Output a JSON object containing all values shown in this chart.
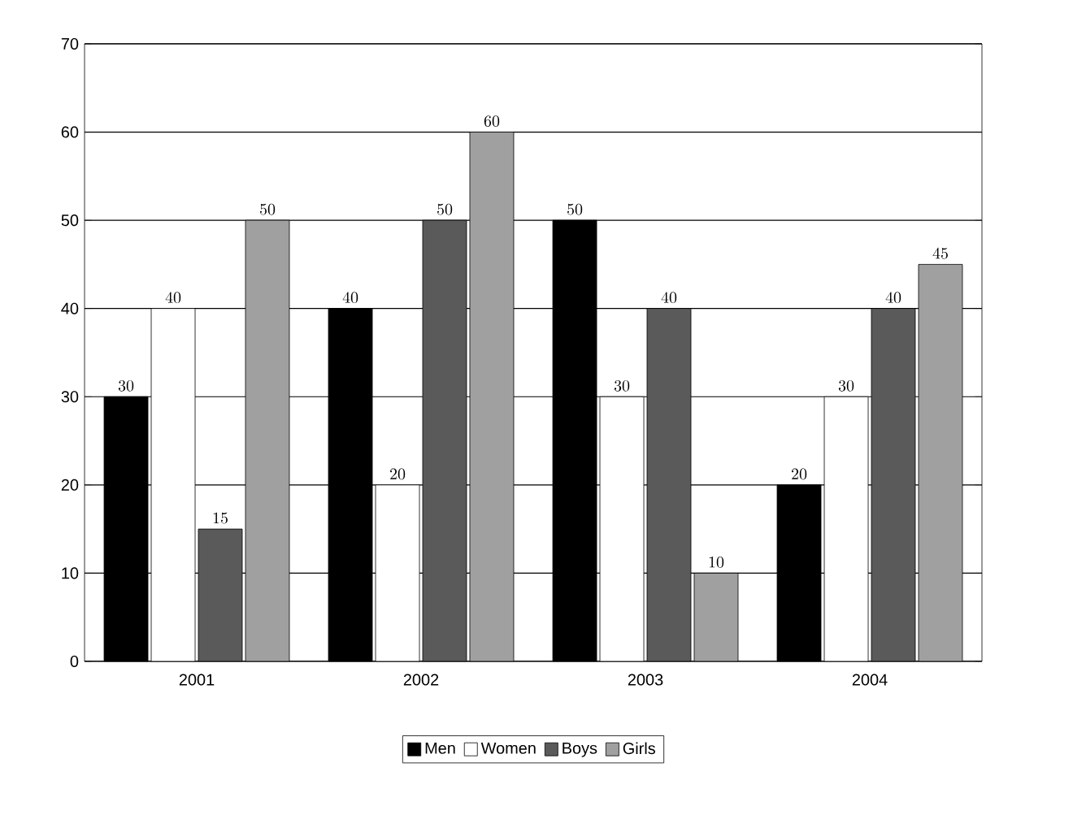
{
  "chart_data": {
    "type": "bar",
    "categories": [
      "2001",
      "2002",
      "2003",
      "2004"
    ],
    "series": [
      {
        "name": "Men",
        "color": "#000000",
        "values": [
          30,
          40,
          50,
          20
        ]
      },
      {
        "name": "Women",
        "color": "#ffffff",
        "values": [
          40,
          20,
          30,
          30
        ]
      },
      {
        "name": "Boys",
        "color": "#5a5a5a",
        "values": [
          15,
          50,
          40,
          40
        ]
      },
      {
        "name": "Girls",
        "color": "#a0a0a0",
        "values": [
          50,
          60,
          10,
          45
        ]
      }
    ],
    "ylim": [
      0,
      70
    ],
    "yticks": [
      0,
      10,
      20,
      30,
      40,
      50,
      60,
      70
    ],
    "grid": "y",
    "legend": "bottom",
    "data_labels": true
  }
}
